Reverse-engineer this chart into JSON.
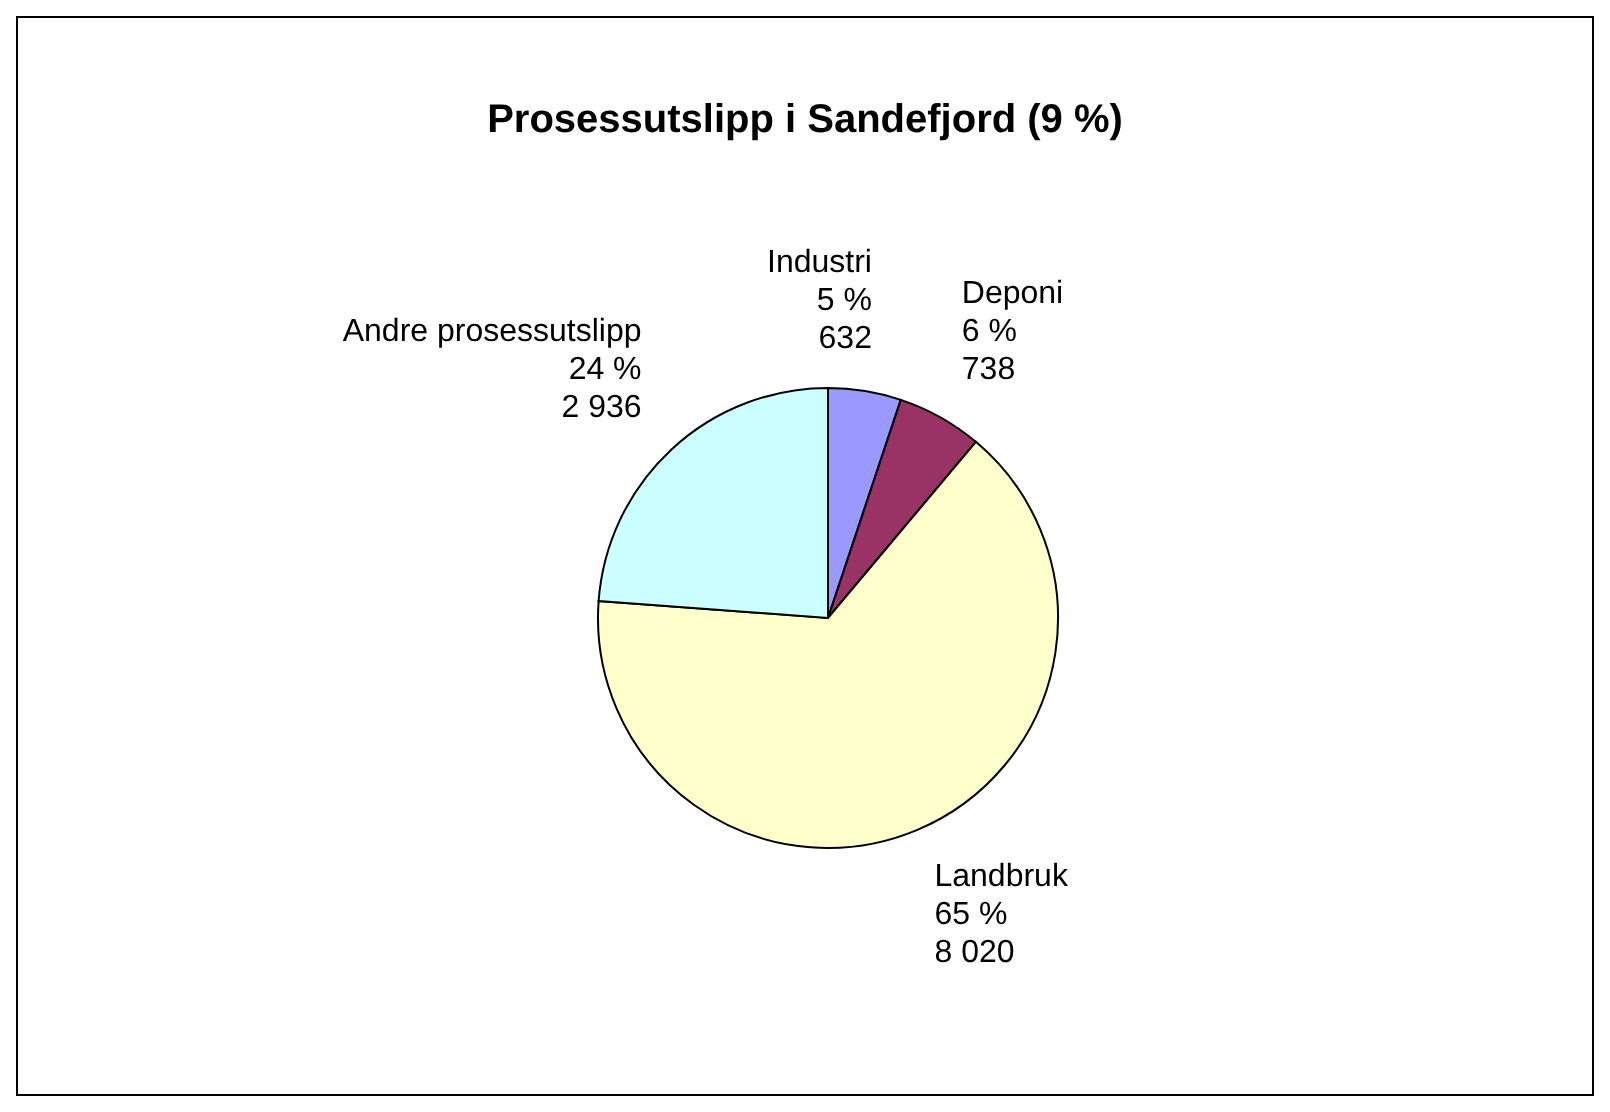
{
  "chart_data": {
    "type": "pie",
    "title": "Prosessutslipp i Sandefjord (9 %)",
    "categories": [
      "Industri",
      "Deponi",
      "Landbruk",
      "Andre prosessutslipp"
    ],
    "values": [
      632,
      738,
      8020,
      2936
    ],
    "colors": [
      "#9999ff",
      "#993366",
      "#ffffcc",
      "#ccffff"
    ],
    "value_labels": [
      "5 %\n632",
      "6 %\n738",
      "65 %\n8 020",
      "24 %\n2 936"
    ],
    "legend": false
  }
}
